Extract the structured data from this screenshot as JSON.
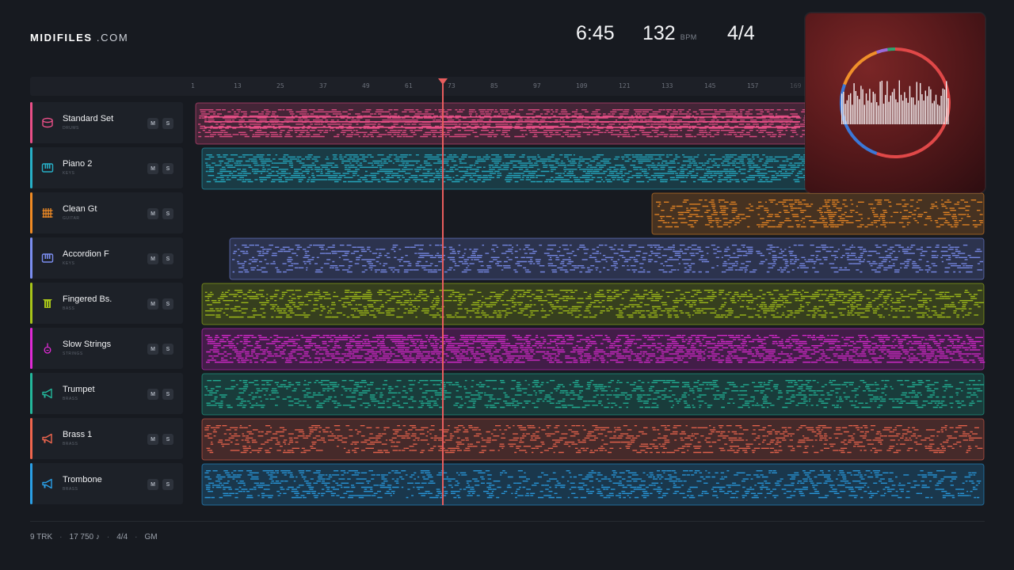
{
  "brand": {
    "name_bold": "MIDIFILES",
    "name_light": ".COM"
  },
  "header": {
    "duration": "6:45",
    "tempo": "132",
    "tempo_unit": "BPM",
    "time_signature": "4/4"
  },
  "ruler": {
    "ticks": [
      "1",
      "13",
      "25",
      "37",
      "49",
      "61",
      "73",
      "85",
      "97",
      "109",
      "121",
      "133",
      "145",
      "157",
      "169"
    ]
  },
  "playhead_bar": 73,
  "tracks": [
    {
      "name": "Standard Set",
      "category": "DRUMS",
      "color": "#e94f87",
      "icon": "drum-icon",
      "mute": "M",
      "solo": "S"
    },
    {
      "name": "Piano 2",
      "category": "KEYS",
      "color": "#27b0c8",
      "icon": "piano-icon",
      "mute": "M",
      "solo": "S"
    },
    {
      "name": "Clean Gt",
      "category": "GUITAR",
      "color": "#f08a24",
      "icon": "guitar-icon",
      "mute": "M",
      "solo": "S"
    },
    {
      "name": "Accordion F",
      "category": "KEYS",
      "color": "#7b8ef0",
      "icon": "accordion-icon",
      "mute": "M",
      "solo": "S"
    },
    {
      "name": "Fingered Bs.",
      "category": "BASS",
      "color": "#a7c419",
      "icon": "bass-icon",
      "mute": "M",
      "solo": "S"
    },
    {
      "name": "Slow Strings",
      "category": "STRINGS",
      "color": "#e02ad6",
      "icon": "violin-icon",
      "mute": "M",
      "solo": "S"
    },
    {
      "name": "Trumpet",
      "category": "BRASS",
      "color": "#23b79b",
      "icon": "horn-icon",
      "mute": "M",
      "solo": "S"
    },
    {
      "name": "Brass 1",
      "category": "BRASS",
      "color": "#f0664e",
      "icon": "horn-icon",
      "mute": "M",
      "solo": "S"
    },
    {
      "name": "Trombone",
      "category": "BRASS",
      "color": "#2a9fe6",
      "icon": "horn-icon",
      "mute": "M",
      "solo": "S"
    }
  ],
  "footer": {
    "tracks": "9 TRK",
    "notes": "17 750 ♪",
    "meter": "4/4",
    "standard": "GM"
  }
}
